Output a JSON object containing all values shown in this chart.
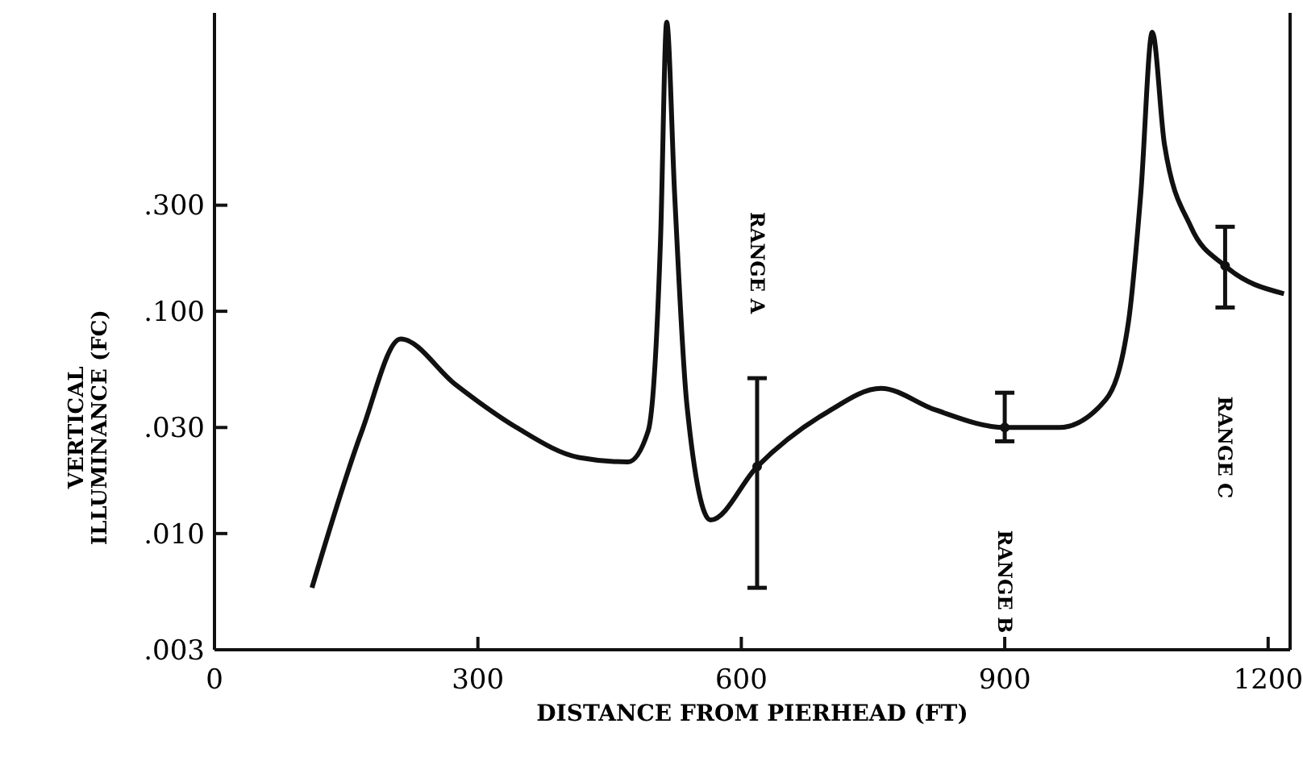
{
  "chart_data": {
    "type": "line",
    "xlabel": "DISTANCE FROM PIERHEAD (FT)",
    "ylabel": "VERTICAL\nILLUMINANCE (FC)",
    "log": "y",
    "xlim": [
      0,
      1225
    ],
    "ylim": [
      0.003,
      2.2
    ],
    "xticks": [
      0,
      300,
      600,
      900,
      1200
    ],
    "yticks": [
      {
        "value": 0.003,
        "label": ".003"
      },
      {
        "value": 0.01,
        "label": ".010"
      },
      {
        "value": 0.03,
        "label": ".030"
      },
      {
        "value": 0.1,
        "label": ".100"
      },
      {
        "value": 0.3,
        "label": ".300"
      }
    ],
    "grid": false,
    "marker": "none",
    "line_style": "solid",
    "series": [
      {
        "color": "#111111",
        "x": [
          111,
          168,
          212,
          274,
          344,
          415,
          471,
          494,
          508,
          515,
          524,
          538,
          565,
          618,
          697,
          759,
          821,
          900,
          962,
          1015,
          1041,
          1055,
          1068,
          1082,
          1112,
          1151,
          1218
        ],
        "values": [
          0.0057,
          0.029,
          0.075,
          0.047,
          0.03,
          0.022,
          0.021,
          0.029,
          0.21,
          2.0,
          0.34,
          0.038,
          0.0115,
          0.02,
          0.035,
          0.045,
          0.036,
          0.03,
          0.03,
          0.04,
          0.09,
          0.34,
          1.8,
          0.56,
          0.24,
          0.16,
          0.12
        ]
      },
      {
        "type": "scatter",
        "marker": "circle",
        "color": "#111111",
        "x": [
          618,
          900,
          1151
        ],
        "values": [
          0.02,
          0.03,
          0.16
        ],
        "errors": [
          [
            0.0057,
            0.05
          ],
          [
            0.026,
            0.043
          ],
          [
            0.104,
            0.24
          ]
        ]
      }
    ],
    "annotations": [
      "RANGE A",
      "RANGE B",
      "RANGE C"
    ]
  }
}
